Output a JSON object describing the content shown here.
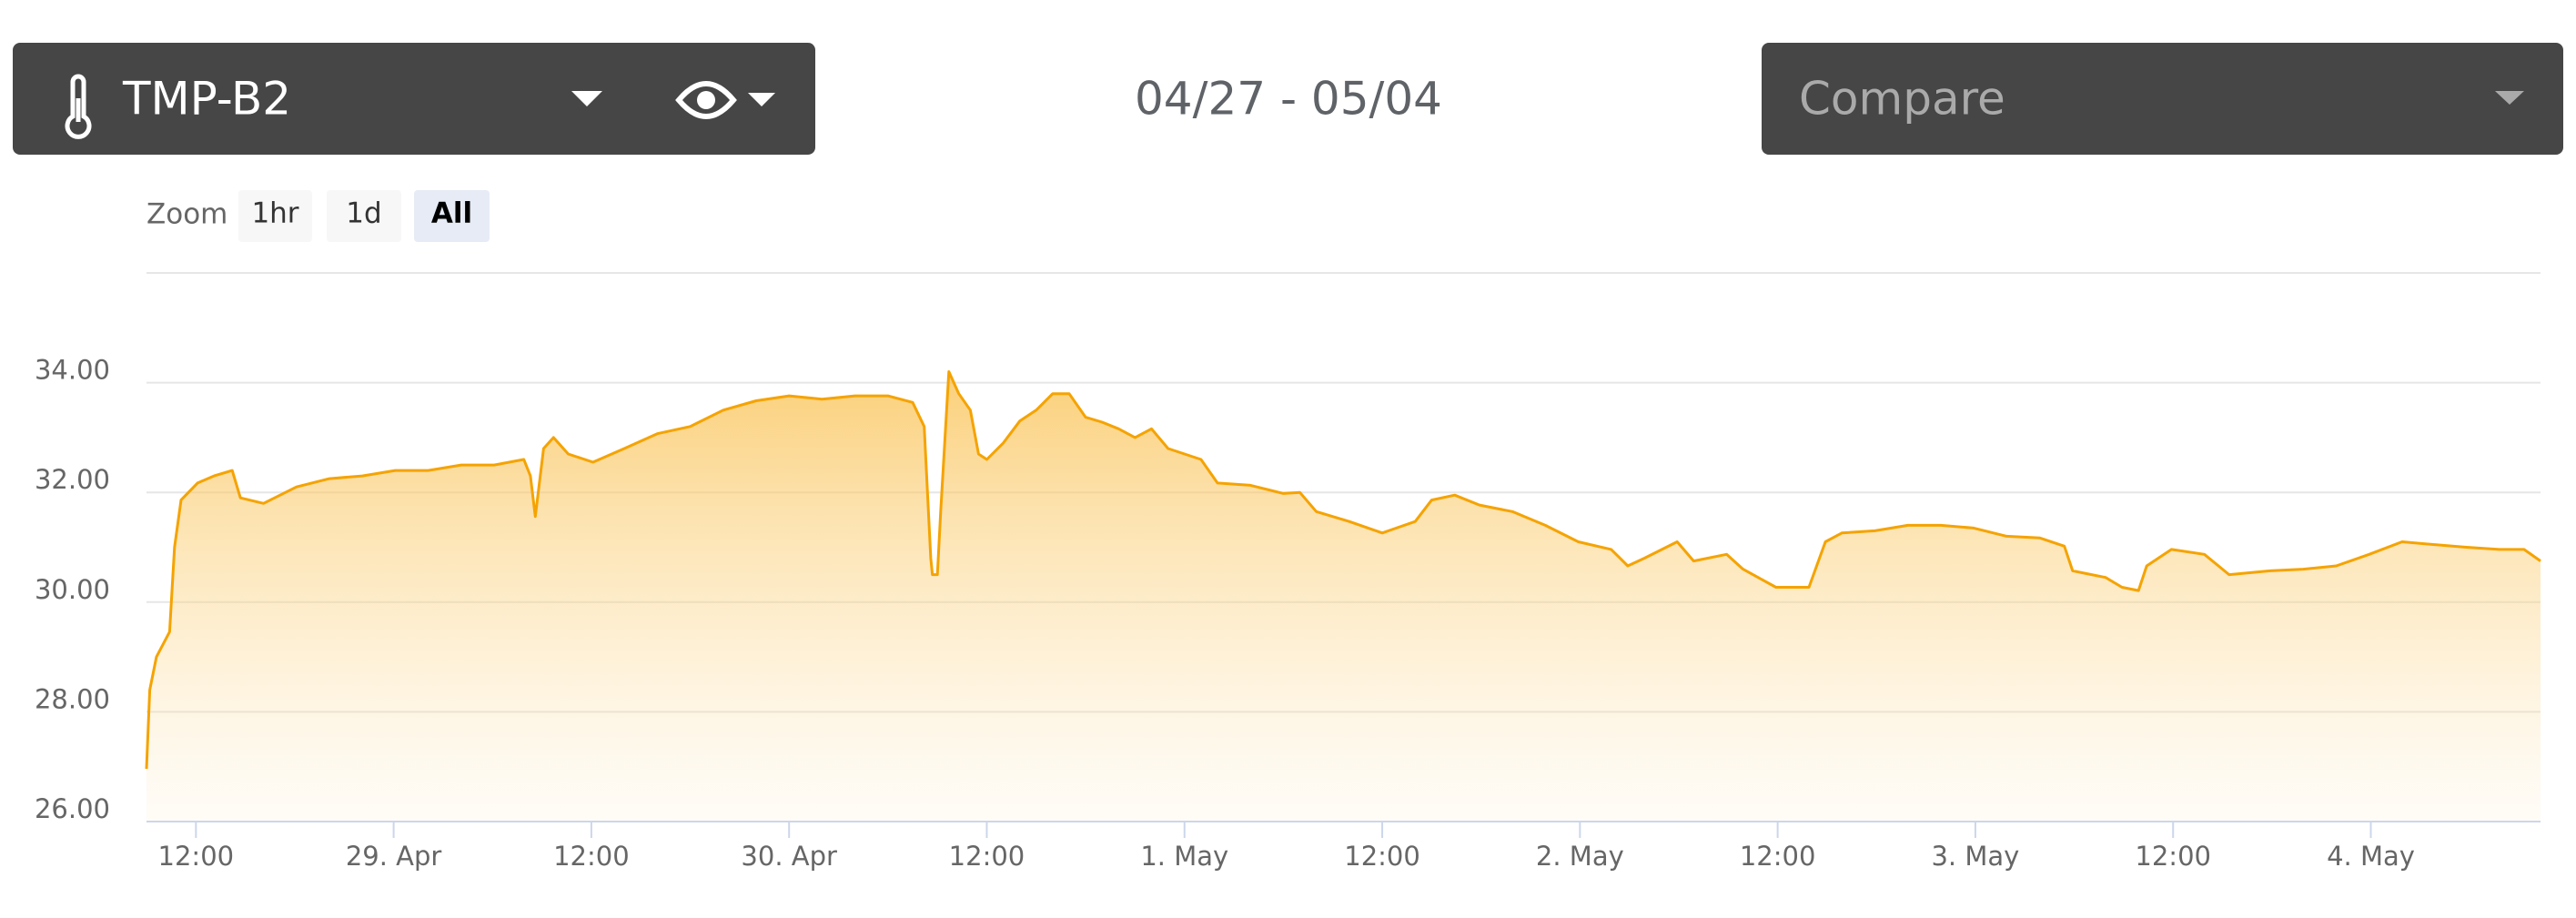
{
  "toolbar": {
    "sensor": "TMP-B2",
    "date_range": "04/27 - 05/04",
    "compare": "Compare"
  },
  "zoom": {
    "label": "Zoom",
    "buttons": [
      "1hr",
      "1d",
      "All"
    ]
  },
  "chart_data": {
    "type": "area",
    "color": "#f5a300",
    "grid": true,
    "x": [
      9.0,
      9.2,
      9.6,
      10.4,
      10.7,
      11.1,
      12.1,
      13.1,
      14.2,
      14.7,
      16.1,
      18.1,
      20.1,
      22.1,
      24.1,
      26.1,
      28.1,
      30.1,
      31.9,
      32.3,
      32.6,
      33.1,
      33.7,
      34.6,
      36.1,
      38.0,
      40.0,
      42.0,
      44.0,
      46.0,
      48.0,
      50.0,
      52.0,
      54.0,
      55.5,
      56.2,
      56.6,
      56.7,
      57.0,
      57.2,
      57.7,
      58.3,
      59.0,
      59.5,
      60.0,
      61.0,
      62.0,
      63.0,
      64.0,
      65.0,
      66.0,
      67.0,
      68.0,
      69.0,
      70.0,
      71.0,
      72.0,
      73.0,
      74.0,
      76.0,
      78.0,
      79.0,
      80.0,
      82.0,
      84.0,
      86.0,
      87.0,
      88.4,
      89.9,
      91.9,
      93.9,
      95.9,
      97.9,
      98.9,
      99.9,
      101.9,
      102.9,
      104.9,
      105.9,
      107.9,
      109.9,
      110.9,
      111.9,
      113.9,
      115.9,
      117.9,
      119.9,
      121.9,
      123.9,
      125.4,
      125.9,
      127.9,
      128.9,
      129.9,
      130.4,
      131.9,
      133.9,
      135.4,
      137.9,
      139.9,
      141.9,
      143.9,
      145.9,
      147.8,
      149.8,
      151.8,
      153.3,
      154.3
    ],
    "values": [
      26.96,
      28.4,
      29.0,
      29.46,
      31.0,
      31.86,
      32.17,
      32.3,
      32.4,
      31.9,
      31.8,
      32.1,
      32.25,
      32.3,
      32.4,
      32.4,
      32.5,
      32.5,
      32.6,
      32.3,
      31.56,
      32.8,
      33.0,
      32.7,
      32.55,
      32.8,
      33.07,
      33.2,
      33.5,
      33.67,
      33.76,
      33.7,
      33.76,
      33.76,
      33.64,
      33.2,
      30.8,
      30.5,
      30.5,
      31.65,
      34.2,
      33.8,
      33.5,
      32.7,
      32.6,
      32.9,
      33.3,
      33.5,
      33.8,
      33.8,
      33.37,
      33.28,
      33.16,
      33.0,
      33.16,
      32.8,
      32.7,
      32.6,
      32.17,
      32.13,
      31.98,
      32.0,
      31.65,
      31.47,
      31.26,
      31.47,
      31.86,
      31.95,
      31.77,
      31.65,
      31.4,
      31.1,
      30.96,
      30.66,
      30.8,
      31.1,
      30.75,
      30.87,
      30.6,
      30.27,
      30.27,
      31.1,
      31.26,
      31.3,
      31.4,
      31.4,
      31.35,
      31.2,
      31.17,
      31.02,
      30.57,
      30.45,
      30.27,
      30.21,
      30.66,
      30.96,
      30.87,
      30.5,
      30.57,
      30.6,
      30.66,
      30.87,
      31.1,
      31.05,
      31.0,
      30.96,
      30.96,
      30.75
    ],
    "xlim": [
      9.0,
      154.3
    ],
    "xticks": [
      {
        "value": 12,
        "label": "12:00"
      },
      {
        "value": 24,
        "label": "29. Apr"
      },
      {
        "value": 36,
        "label": "12:00"
      },
      {
        "value": 48,
        "label": "30. Apr"
      },
      {
        "value": 60,
        "label": "12:00"
      },
      {
        "value": 72,
        "label": "1. May"
      },
      {
        "value": 84,
        "label": "12:00"
      },
      {
        "value": 96,
        "label": "2. May"
      },
      {
        "value": 108,
        "label": "12:00"
      },
      {
        "value": 120,
        "label": "3. May"
      },
      {
        "value": 132,
        "label": "12:00"
      },
      {
        "value": 144,
        "label": "4. May"
      }
    ],
    "ylim": [
      26,
      36
    ],
    "yticks": [
      {
        "value": 26,
        "label": "26.00"
      },
      {
        "value": 28,
        "label": "28.00"
      },
      {
        "value": 30,
        "label": "30.00"
      },
      {
        "value": 32,
        "label": "32.00"
      },
      {
        "value": 34,
        "label": "34.00"
      }
    ]
  }
}
